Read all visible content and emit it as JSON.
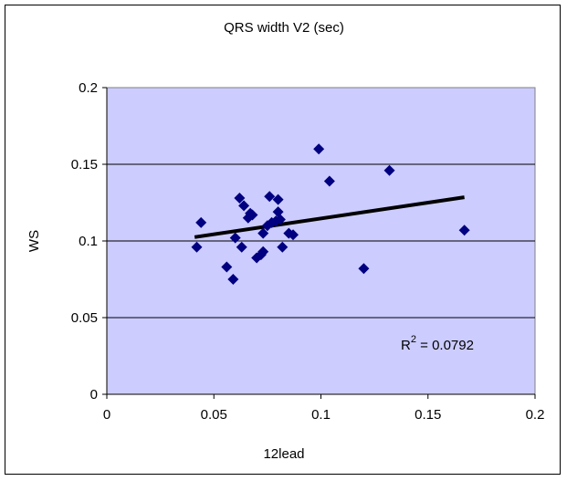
{
  "chart_data": {
    "type": "scatter",
    "title": "QRS width V2  (sec)",
    "xlabel": "12lead",
    "ylabel": "WS",
    "xlim": [
      0,
      0.2
    ],
    "ylim": [
      0,
      0.2
    ],
    "x_ticks": [
      "0",
      "0.05",
      "0.1",
      "0.15",
      "0.2"
    ],
    "y_ticks": [
      "0",
      "0.05",
      "0.1",
      "0.15",
      "0.2"
    ],
    "grid": "horizontal",
    "plot_background": "#ccccff",
    "marker_color": "#000080",
    "trendline_color": "#000000",
    "points": [
      {
        "x": 0.042,
        "y": 0.096
      },
      {
        "x": 0.044,
        "y": 0.112
      },
      {
        "x": 0.056,
        "y": 0.083
      },
      {
        "x": 0.059,
        "y": 0.075
      },
      {
        "x": 0.06,
        "y": 0.102
      },
      {
        "x": 0.062,
        "y": 0.128
      },
      {
        "x": 0.063,
        "y": 0.096
      },
      {
        "x": 0.064,
        "y": 0.123
      },
      {
        "x": 0.066,
        "y": 0.115
      },
      {
        "x": 0.067,
        "y": 0.118
      },
      {
        "x": 0.068,
        "y": 0.117
      },
      {
        "x": 0.07,
        "y": 0.089
      },
      {
        "x": 0.072,
        "y": 0.091
      },
      {
        "x": 0.073,
        "y": 0.093
      },
      {
        "x": 0.073,
        "y": 0.105
      },
      {
        "x": 0.075,
        "y": 0.11
      },
      {
        "x": 0.076,
        "y": 0.129
      },
      {
        "x": 0.077,
        "y": 0.112
      },
      {
        "x": 0.079,
        "y": 0.113
      },
      {
        "x": 0.08,
        "y": 0.127
      },
      {
        "x": 0.08,
        "y": 0.119
      },
      {
        "x": 0.081,
        "y": 0.114
      },
      {
        "x": 0.082,
        "y": 0.096
      },
      {
        "x": 0.085,
        "y": 0.105
      },
      {
        "x": 0.087,
        "y": 0.104
      },
      {
        "x": 0.099,
        "y": 0.16
      },
      {
        "x": 0.104,
        "y": 0.139
      },
      {
        "x": 0.12,
        "y": 0.082
      },
      {
        "x": 0.132,
        "y": 0.146
      },
      {
        "x": 0.167,
        "y": 0.107
      }
    ],
    "trendline": {
      "x": [
        0.041,
        0.167
      ],
      "y": [
        0.1025,
        0.1285
      ]
    },
    "annotation_prefix": "R",
    "annotation_superscript": "2",
    "annotation_text": " = 0.0792"
  }
}
